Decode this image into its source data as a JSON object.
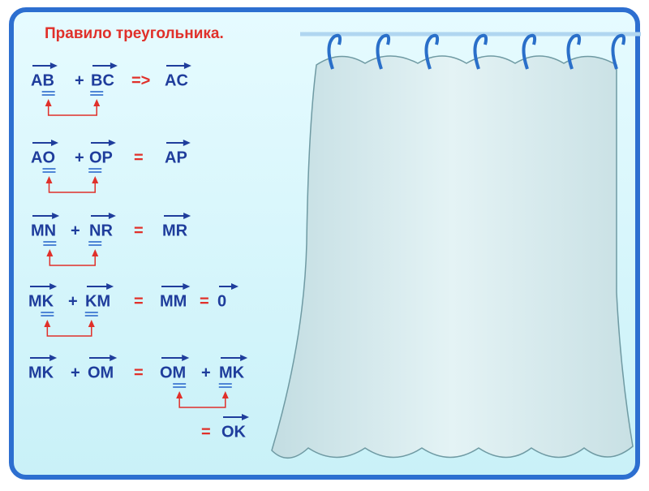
{
  "title": "Правило треугольника.",
  "rows": [
    [
      "AB",
      "+",
      "BC",
      "=>",
      "AC"
    ],
    [
      "AO",
      "+",
      "OP",
      "=",
      "AP"
    ],
    [
      "MN",
      "+",
      "NR",
      "=",
      "MR"
    ],
    [
      "MK",
      "+",
      "KM",
      "=",
      "MM",
      "=",
      "0"
    ],
    [
      "MK",
      "+",
      "OM",
      "=",
      "OM",
      "+",
      "MK"
    ],
    [
      "=",
      "OK"
    ]
  ]
}
